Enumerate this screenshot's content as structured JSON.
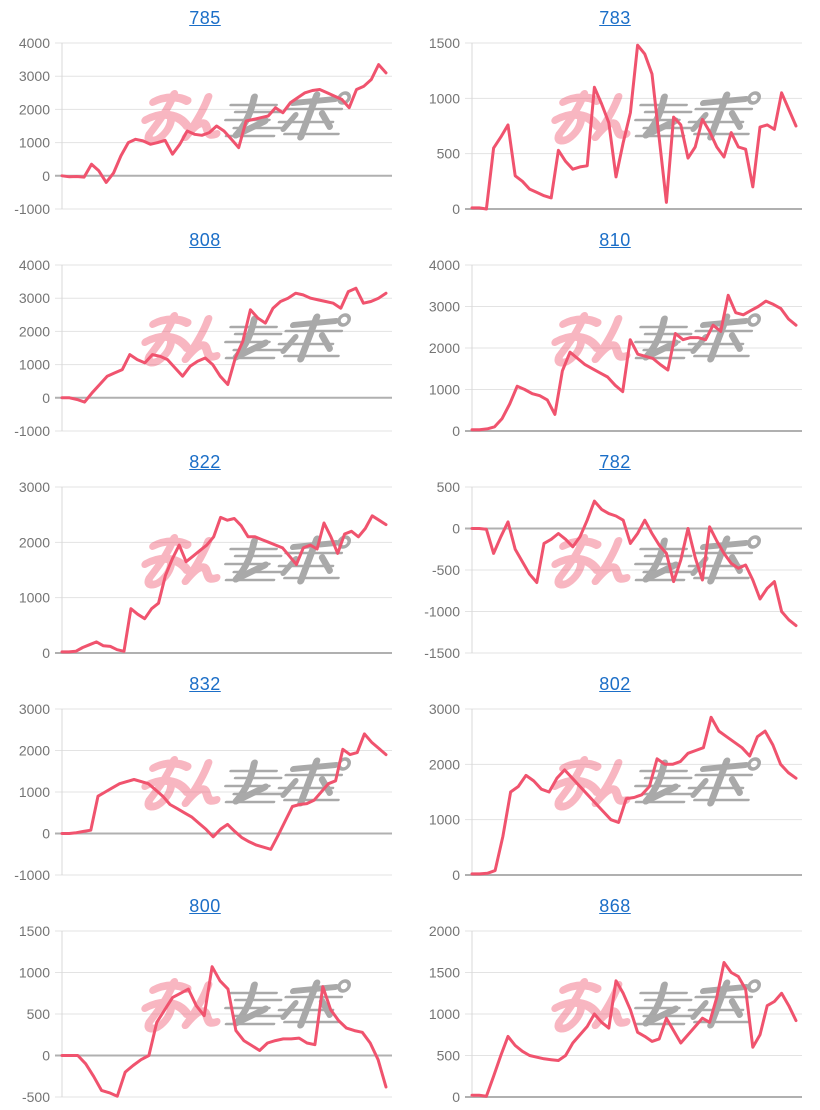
{
  "page": {
    "background": "#ffffff"
  },
  "style": {
    "line_color": "#f0536e",
    "grid_color": "#e3e3e3",
    "zero_line_color": "#b0b0b0",
    "axis_line_color": "#d8d8d8",
    "axis_label_color": "#757575",
    "title_color": "#1b6ec7",
    "watermark_pink": "#f07f91",
    "watermark_gray": "#9b9b9b"
  },
  "watermark": {
    "pink_text": "みん",
    "gray_text": "レポ",
    "full_text": "みんレポ"
  },
  "chart_data": [
    {
      "type": "line",
      "title": "785",
      "ylim": [
        -1000,
        4000
      ],
      "ystep": 1000,
      "yticks": [
        4000,
        3000,
        2000,
        1000,
        0,
        -1000
      ],
      "values": [
        0,
        -30,
        -20,
        -40,
        350,
        150,
        -200,
        80,
        600,
        1000,
        1100,
        1050,
        950,
        1000,
        1070,
        650,
        950,
        1350,
        1250,
        1220,
        1300,
        1500,
        1350,
        1100,
        850,
        1650,
        1700,
        1750,
        1800,
        2050,
        1900,
        2200,
        2350,
        2500,
        2570,
        2600,
        2500,
        2400,
        2300,
        2050,
        2600,
        2700,
        2900,
        3350,
        3100
      ]
    },
    {
      "type": "line",
      "title": "783",
      "ylim": [
        0,
        1500
      ],
      "ystep": 500,
      "yticks": [
        1500,
        1000,
        500,
        0
      ],
      "values": [
        10,
        10,
        0,
        550,
        650,
        760,
        300,
        250,
        180,
        150,
        120,
        100,
        530,
        430,
        360,
        380,
        390,
        1100,
        950,
        780,
        290,
        600,
        870,
        1480,
        1400,
        1220,
        640,
        60,
        830,
        760,
        460,
        560,
        810,
        700,
        560,
        470,
        690,
        560,
        540,
        200,
        740,
        760,
        720,
        1050,
        900,
        750
      ]
    },
    {
      "type": "line",
      "title": "808",
      "ylim": [
        -1000,
        4000
      ],
      "ystep": 1000,
      "yticks": [
        4000,
        3000,
        2000,
        1000,
        0,
        -1000
      ],
      "values": [
        0,
        0,
        -50,
        -130,
        150,
        400,
        650,
        750,
        850,
        1300,
        1150,
        1050,
        1300,
        1250,
        1150,
        900,
        650,
        950,
        1100,
        1200,
        1000,
        650,
        400,
        1200,
        1700,
        2650,
        2400,
        2250,
        2700,
        2900,
        3000,
        3150,
        3100,
        3000,
        2950,
        2900,
        2850,
        2700,
        3200,
        3300,
        2850,
        2900,
        3000,
        3150
      ]
    },
    {
      "type": "line",
      "title": "810",
      "ylim": [
        0,
        4000
      ],
      "ystep": 1000,
      "yticks": [
        4000,
        3000,
        2000,
        1000,
        0
      ],
      "values": [
        30,
        30,
        50,
        100,
        300,
        650,
        1080,
        1000,
        900,
        850,
        750,
        400,
        1450,
        1900,
        1750,
        1600,
        1500,
        1400,
        1300,
        1100,
        950,
        2200,
        1850,
        1800,
        1750,
        1600,
        1470,
        2350,
        2200,
        2250,
        2250,
        2200,
        2550,
        2400,
        3270,
        2850,
        2800,
        2900,
        3000,
        3130,
        3050,
        2950,
        2700,
        2550
      ]
    },
    {
      "type": "line",
      "title": "822",
      "ylim": [
        0,
        3000
      ],
      "ystep": 1000,
      "yticks": [
        3000,
        2000,
        1000,
        0
      ],
      "values": [
        20,
        20,
        30,
        100,
        150,
        200,
        130,
        120,
        60,
        30,
        800,
        700,
        620,
        800,
        900,
        1400,
        1700,
        1950,
        1650,
        1750,
        1850,
        1950,
        2100,
        2450,
        2400,
        2430,
        2300,
        2100,
        2100,
        2050,
        2000,
        1950,
        1900,
        1750,
        1600,
        1900,
        1950,
        1880,
        2350,
        2100,
        1800,
        2150,
        2200,
        2100,
        2250,
        2480,
        2400,
        2320
      ]
    },
    {
      "type": "line",
      "title": "782",
      "ylim": [
        -1500,
        500
      ],
      "ystep": 500,
      "yticks": [
        500,
        0,
        -500,
        -1000,
        -1500
      ],
      "values": [
        0,
        0,
        -10,
        -300,
        -100,
        80,
        -250,
        -400,
        -550,
        -650,
        -180,
        -130,
        -60,
        -130,
        -220,
        -100,
        100,
        330,
        230,
        180,
        150,
        100,
        -180,
        -60,
        100,
        -60,
        -200,
        -300,
        -640,
        -380,
        0,
        -350,
        -620,
        20,
        -150,
        -300,
        -420,
        -480,
        -440,
        -620,
        -850,
        -720,
        -640,
        -1000,
        -1100,
        -1170
      ]
    },
    {
      "type": "line",
      "title": "832",
      "ylim": [
        -1000,
        3000
      ],
      "ystep": 1000,
      "yticks": [
        3000,
        2000,
        1000,
        0,
        -1000
      ],
      "values": [
        0,
        0,
        20,
        50,
        80,
        900,
        1000,
        1100,
        1200,
        1250,
        1300,
        1250,
        1200,
        1050,
        900,
        700,
        600,
        500,
        400,
        250,
        100,
        -80,
        100,
        220,
        50,
        -100,
        -200,
        -280,
        -330,
        -380,
        -50,
        300,
        650,
        700,
        720,
        800,
        1000,
        1200,
        1270,
        2030,
        1900,
        1950,
        2400,
        2200,
        2050,
        1900
      ]
    },
    {
      "type": "line",
      "title": "802",
      "ylim": [
        0,
        3000
      ],
      "ystep": 1000,
      "yticks": [
        3000,
        2000,
        1000,
        0
      ],
      "values": [
        20,
        20,
        30,
        80,
        700,
        1500,
        1600,
        1800,
        1700,
        1550,
        1500,
        1750,
        1900,
        1750,
        1600,
        1450,
        1300,
        1150,
        1000,
        950,
        1380,
        1400,
        1450,
        1600,
        2100,
        2000,
        2000,
        2050,
        2200,
        2250,
        2300,
        2850,
        2600,
        2500,
        2400,
        2300,
        2150,
        2500,
        2600,
        2350,
        2000,
        1850,
        1750
      ]
    },
    {
      "type": "line",
      "title": "800",
      "ylim": [
        -500,
        1500
      ],
      "ystep": 500,
      "yticks": [
        1500,
        1000,
        500,
        0,
        -500
      ],
      "values": [
        0,
        0,
        0,
        -100,
        -250,
        -420,
        -450,
        -490,
        -200,
        -120,
        -50,
        0,
        400,
        550,
        700,
        750,
        800,
        600,
        480,
        1070,
        900,
        800,
        300,
        180,
        120,
        60,
        150,
        180,
        200,
        200,
        210,
        150,
        130,
        830,
        550,
        420,
        330,
        300,
        280,
        150,
        -50,
        -380
      ]
    },
    {
      "type": "line",
      "title": "868",
      "ylim": [
        0,
        2000
      ],
      "ystep": 500,
      "yticks": [
        2000,
        1500,
        1000,
        500,
        0
      ],
      "values": [
        20,
        20,
        10,
        250,
        500,
        730,
        620,
        550,
        500,
        480,
        460,
        450,
        440,
        500,
        650,
        750,
        850,
        1000,
        900,
        830,
        1400,
        1250,
        1050,
        780,
        730,
        670,
        700,
        950,
        800,
        650,
        750,
        850,
        950,
        900,
        1200,
        1620,
        1500,
        1450,
        1300,
        600,
        750,
        1100,
        1150,
        1250,
        1100,
        920
      ]
    }
  ]
}
